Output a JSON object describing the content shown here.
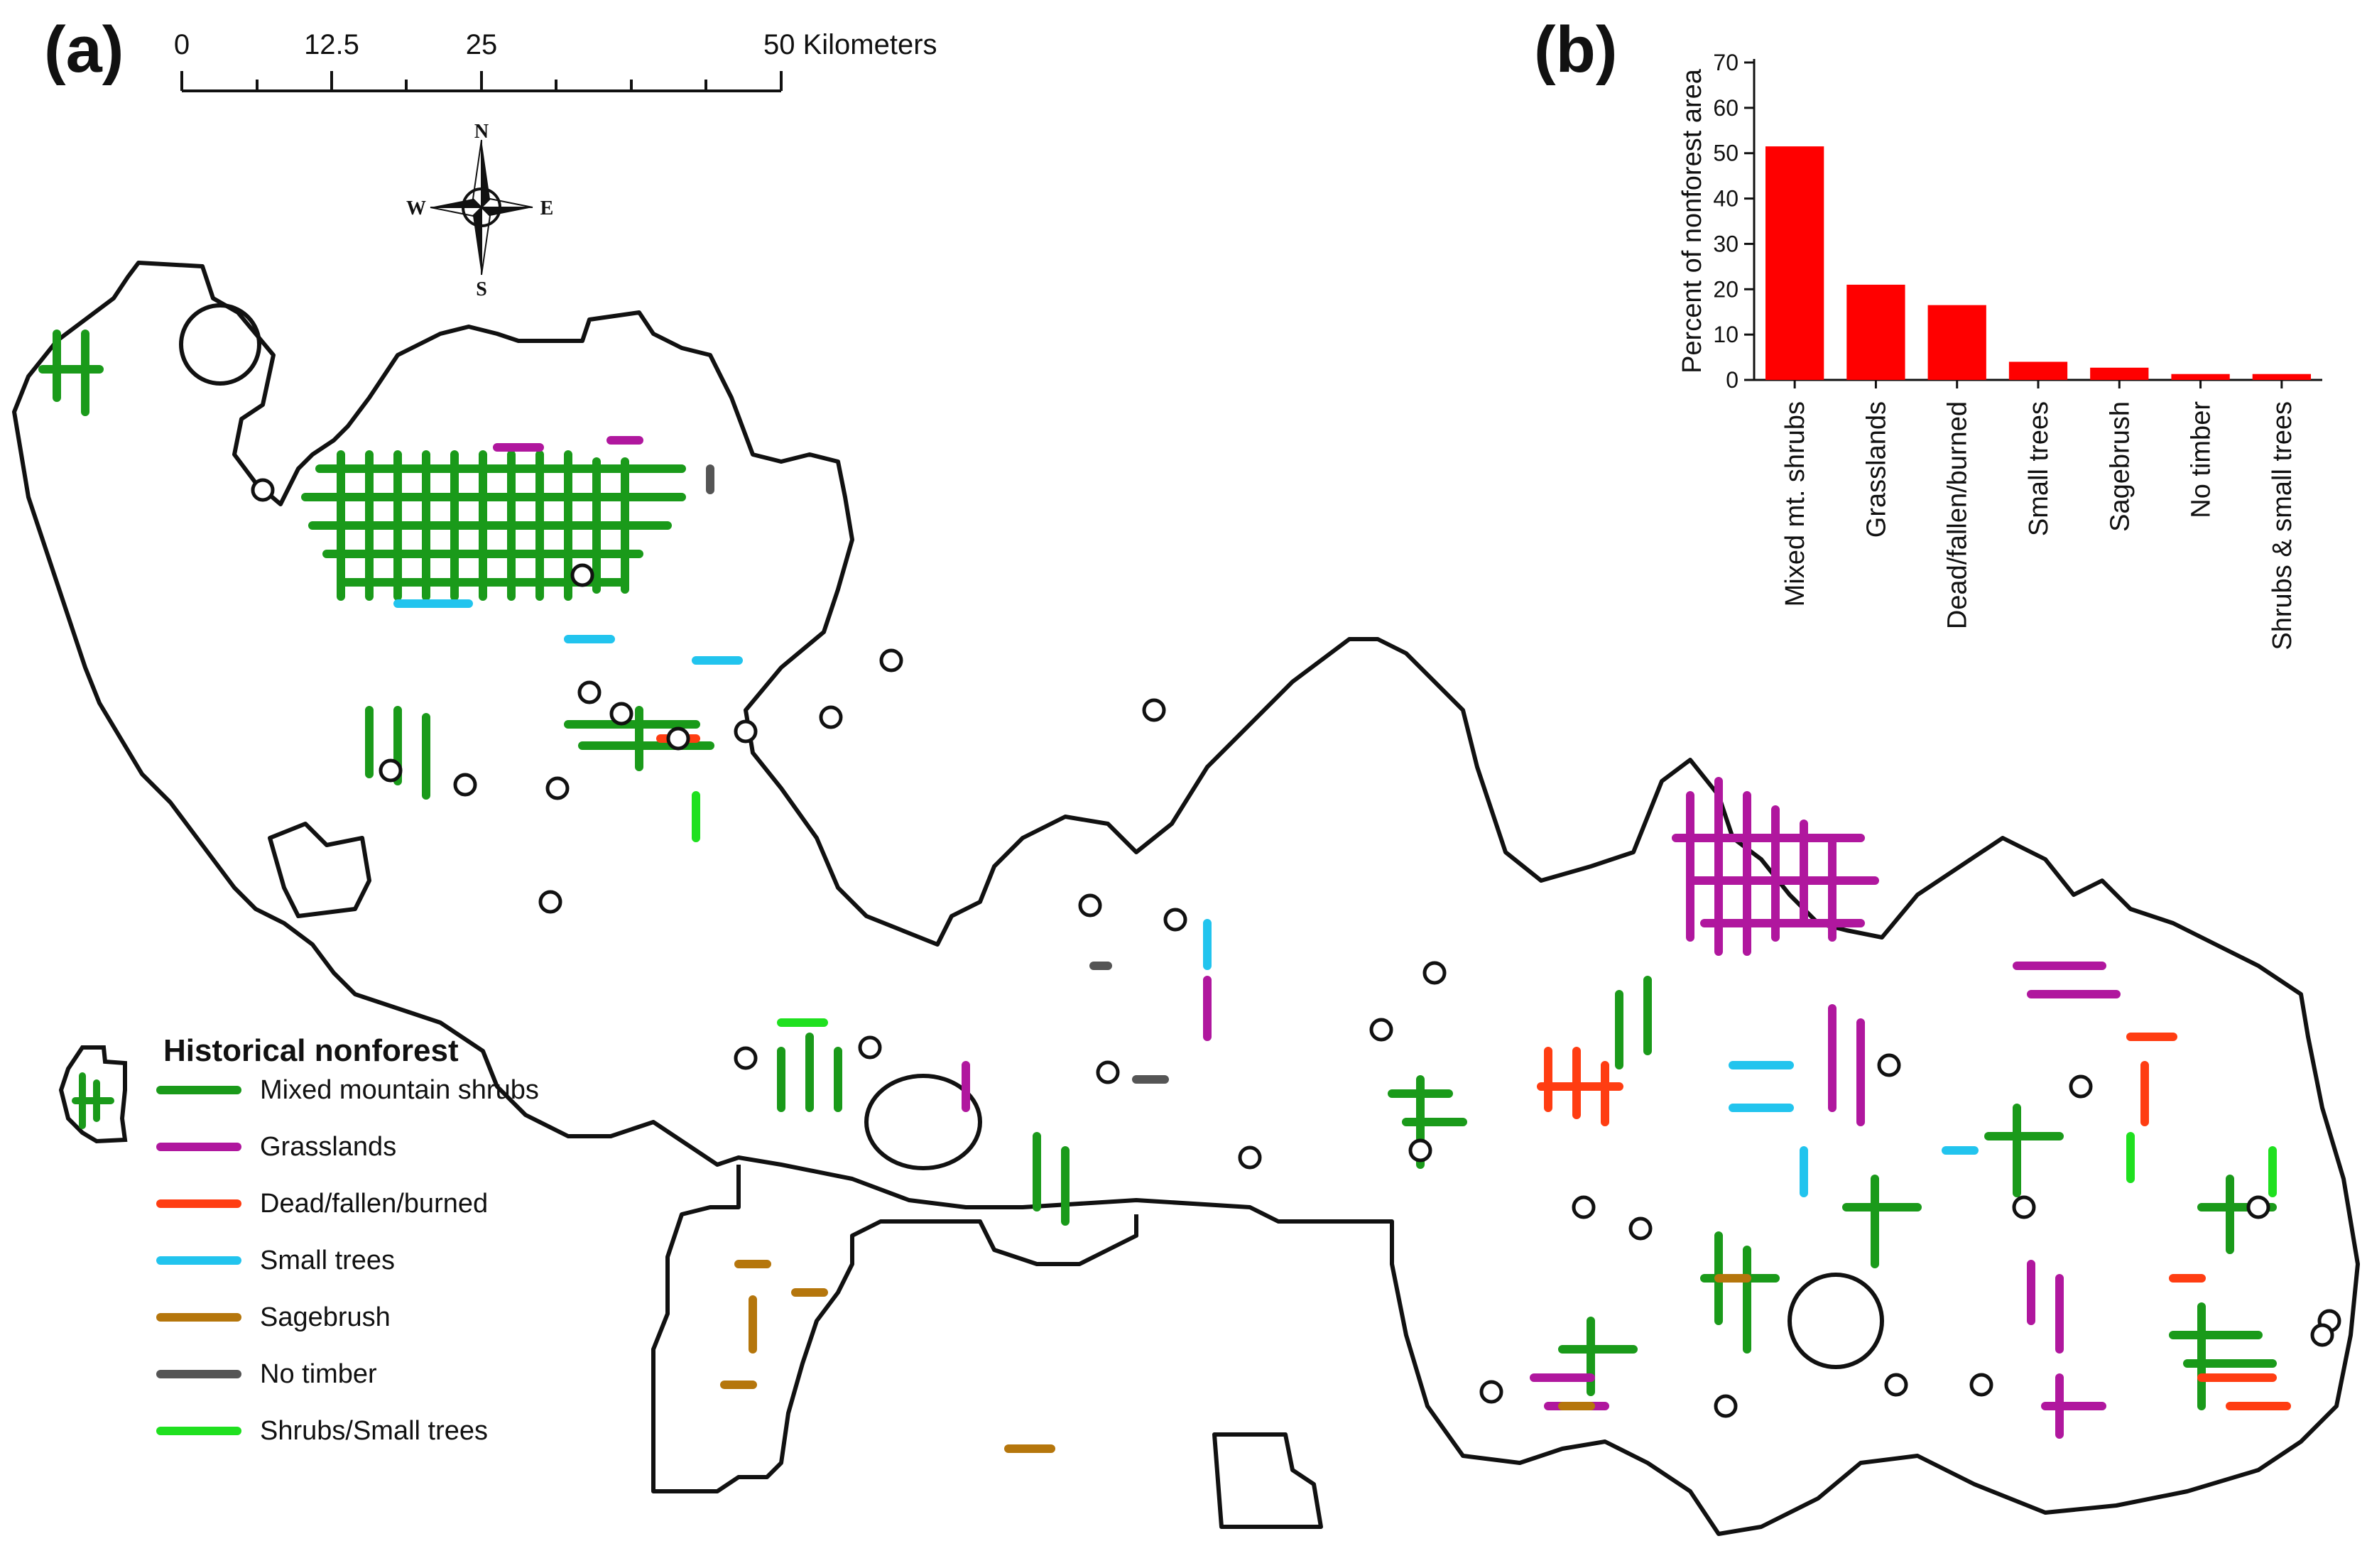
{
  "panel_a": {
    "label": "(a)",
    "scale_bar": {
      "ticks": [
        "0",
        "12.5",
        "25",
        "50 Kilometers"
      ]
    },
    "compass": {
      "n": "N",
      "s": "S",
      "e": "E",
      "w": "W"
    },
    "legend": {
      "title": "Historical nonforest",
      "items": [
        {
          "label": "Mixed mountain shrubs",
          "color": "#1a9a1a"
        },
        {
          "label": "Grasslands",
          "color": "#b0179e"
        },
        {
          "label": "Dead/fallen/burned",
          "color": "#ff3d12"
        },
        {
          "label": "Small trees",
          "color": "#22c4ee"
        },
        {
          "label": "Sagebrush",
          "color": "#b5760c"
        },
        {
          "label": "No timber",
          "color": "#555555"
        },
        {
          "label": "Shrubs/Small trees",
          "color": "#1fe01f"
        }
      ]
    }
  },
  "panel_b": {
    "label": "(b)"
  },
  "chart_data": {
    "type": "bar",
    "ylabel": "Percent of nonforest area",
    "xlabel": "",
    "ylim": [
      0,
      70
    ],
    "yticks": [
      0,
      10,
      20,
      30,
      40,
      50,
      60,
      70
    ],
    "bar_color": "#ff0000",
    "categories": [
      "Mixed mt. shrubs",
      "Grasslands",
      "Dead/fallen/burned",
      "Small trees",
      "Sagebrush",
      "No timber",
      "Shrubs & small trees"
    ],
    "values": [
      51.5,
      21,
      16.5,
      4,
      2.7,
      1.3,
      1.3
    ]
  }
}
